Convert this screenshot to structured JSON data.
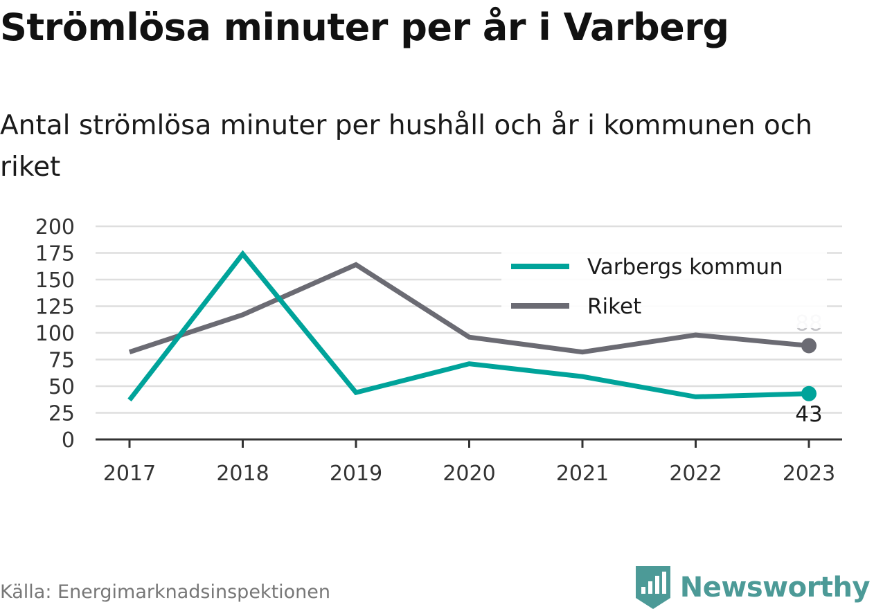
{
  "title": "Strömlösa minuter per år i Varberg",
  "subtitle": "Antal strömlösa minuter per hushåll och år i kommunen och riket",
  "source": "Källa: Energimarknadsinspektionen",
  "brand": {
    "name": "Newsworthy",
    "logo_icon": "bar-chart-pin-icon",
    "color": "#4c9a97"
  },
  "chart_data": {
    "type": "line",
    "title": "Strömlösa minuter per år i Varberg",
    "subtitle": "Antal strömlösa minuter per hushåll och år i kommunen och riket",
    "xlabel": "",
    "ylabel": "",
    "x": [
      "2017",
      "2018",
      "2019",
      "2020",
      "2021",
      "2022",
      "2023"
    ],
    "ylim": [
      0,
      200
    ],
    "yticks": [
      "0",
      "25",
      "50",
      "75",
      "100",
      "125",
      "150",
      "175",
      "200"
    ],
    "grid": true,
    "legend_position": "top-right",
    "series": [
      {
        "name": "Varbergs kommun",
        "color": "#00a39a",
        "values": [
          37,
          174,
          44,
          71,
          59,
          40,
          43
        ],
        "end_label": "43",
        "end_label_position": "below",
        "end_label_color": "#1a1a1a"
      },
      {
        "name": "Riket",
        "color": "#6b6b73",
        "values": [
          82,
          117,
          164,
          96,
          82,
          98,
          88
        ],
        "end_label": "88",
        "end_label_position": "above",
        "end_label_color": "#c4c4c8"
      }
    ]
  }
}
